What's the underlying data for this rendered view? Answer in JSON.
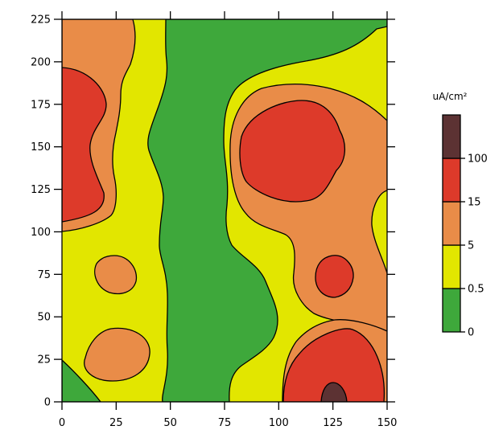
{
  "chart_data": {
    "type": "contour",
    "title": "",
    "xlabel": "",
    "ylabel": "",
    "xlim": [
      0,
      150
    ],
    "ylim": [
      0,
      225
    ],
    "xticks": [
      0,
      25,
      50,
      75,
      100,
      125,
      150
    ],
    "yticks": [
      0,
      25,
      50,
      75,
      100,
      125,
      150,
      175,
      200,
      225
    ],
    "xtick_labels": [
      "0",
      "25",
      "50",
      "75",
      "100",
      "125",
      "150"
    ],
    "ytick_labels": [
      "0",
      "25",
      "50",
      "75",
      "100",
      "125",
      "150",
      "175",
      "200",
      "225"
    ],
    "colors": {
      "band_0_0.5": "#3ea83b",
      "band_0.5_5": "#e2e600",
      "band_5_15": "#e98c48",
      "band_15_100": "#dd3a2a",
      "band_100_plus": "#5c3233",
      "contour_line": "#000000"
    },
    "legend": {
      "title": "uA/cm²",
      "placement": "right",
      "levels": [
        "0",
        "0.5",
        "5",
        "15",
        "100"
      ]
    },
    "regions": [
      {
        "band": "15-100",
        "x_center": 10,
        "y_center": 150,
        "x_extent": [
          0,
          20
        ],
        "y_extent": [
          106,
          197
        ]
      },
      {
        "band": "5-15",
        "x_center": 24,
        "y_center": 75,
        "x_extent": [
          15,
          34
        ],
        "y_extent": [
          64,
          86
        ]
      },
      {
        "band": "5-15",
        "x_center": 26,
        "y_center": 27,
        "x_extent": [
          10,
          40
        ],
        "y_extent": [
          10,
          44
        ]
      },
      {
        "band": "15-100",
        "x_center": 106,
        "y_center": 140,
        "x_extent": [
          88,
          126
        ],
        "y_extent": [
          110,
          168
        ]
      },
      {
        "band": "15-100",
        "x_center": 125,
        "y_center": 75,
        "x_extent": [
          117,
          134
        ],
        "y_extent": [
          63,
          86
        ]
      },
      {
        "band": "15-100",
        "x_center": 121,
        "y_center": 18,
        "x_extent": [
          102,
          145
        ],
        "y_extent": [
          0,
          45
        ]
      },
      {
        "band": "100+",
        "x_center": 126,
        "y_center": 4,
        "x_extent": [
          120,
          132
        ],
        "y_extent": [
          0,
          11
        ]
      },
      {
        "band": "0-0.5",
        "x_center": 64,
        "y_center": 120,
        "x_extent": [
          40,
          110
        ],
        "y_extent": [
          0,
          225
        ]
      }
    ]
  }
}
